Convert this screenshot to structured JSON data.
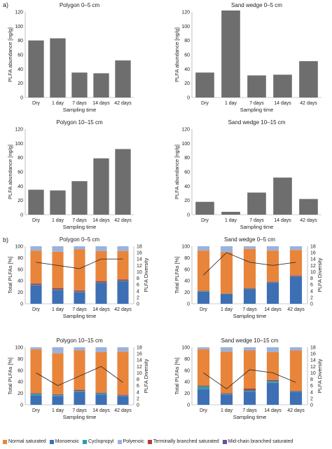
{
  "panel_labels": {
    "a": "a)",
    "b": "b)"
  },
  "categories": [
    "Dry",
    "1 day",
    "7 days",
    "14 days",
    "42 days"
  ],
  "xlabel": "Sampling time",
  "ylabel_a": "PLFA abundance [ng/g]",
  "ylabel_b_left": "Total PLFAs [%]",
  "ylabel_b_right": "PLFA Diversity",
  "colors": {
    "bar_gray": "#6e6e6e",
    "normal_saturated": "#e8853a",
    "monoenoic": "#3d6fb5",
    "cyclopropyl": "#2aa0a8",
    "polyenoic": "#9bb2dd",
    "terminally_branched": "#b33a3a",
    "mid_chain_branched": "#6f4b9a",
    "diversity_line": "#333333"
  },
  "legend": [
    {
      "label": "Normal saturated",
      "color_key": "normal_saturated"
    },
    {
      "label": "Monoenoic",
      "color_key": "monoenoic"
    },
    {
      "label": "Cyclopropyl",
      "color_key": "cyclopropyl"
    },
    {
      "label": "Polyenoic",
      "color_key": "polyenoic"
    },
    {
      "label": "Terminally branched saturated",
      "color_key": "terminally_branched"
    },
    {
      "label": "Mid-chain branched saturated",
      "color_key": "mid_chain_branched"
    }
  ],
  "chart_data": [
    {
      "id": "a1",
      "type": "bar",
      "title": "Polygon 0–5 cm",
      "ylim": [
        0,
        120
      ],
      "yticks": [
        0,
        20,
        40,
        60,
        80,
        100,
        120
      ],
      "values": [
        80,
        83,
        35,
        34,
        52
      ]
    },
    {
      "id": "a2",
      "type": "bar",
      "title": "Sand wedge 0–5 cm",
      "ylim": [
        0,
        120
      ],
      "yticks": [
        0,
        20,
        40,
        60,
        80,
        100,
        120
      ],
      "values": [
        35,
        122,
        31,
        32,
        51
      ]
    },
    {
      "id": "a3",
      "type": "bar",
      "title": "Polygon 10–15 cm",
      "ylim": [
        0,
        120
      ],
      "yticks": [
        0,
        20,
        40,
        60,
        80,
        100,
        120
      ],
      "values": [
        35,
        34,
        47,
        79,
        92
      ]
    },
    {
      "id": "a4",
      "type": "bar",
      "title": "Sand wedge 10–15 cm",
      "ylim": [
        0,
        120
      ],
      "yticks": [
        0,
        20,
        40,
        60,
        80,
        100,
        120
      ],
      "values": [
        18,
        4,
        31,
        52,
        22
      ]
    },
    {
      "id": "b1",
      "type": "stacked_bar_with_line",
      "title": "Polygon 0–5 cm",
      "ylim": [
        0,
        100
      ],
      "yticks": [
        0,
        20,
        40,
        60,
        80,
        100
      ],
      "y2lim": [
        0,
        18
      ],
      "y2ticks": [
        0,
        2,
        4,
        6,
        8,
        10,
        12,
        14,
        16,
        18
      ],
      "series": [
        {
          "key": "monoenoic",
          "values": [
            32,
            24,
            20,
            36,
            39
          ]
        },
        {
          "key": "cyclopropyl",
          "values": [
            1,
            1,
            1,
            1,
            1
          ]
        },
        {
          "key": "terminally_branched",
          "values": [
            2,
            2,
            2,
            2,
            2
          ]
        },
        {
          "key": "mid_chain_branched",
          "values": [
            0.5,
            0.5,
            0.5,
            0.5,
            0.5
          ]
        },
        {
          "key": "normal_saturated",
          "values": [
            57,
            63,
            71,
            52,
            49
          ]
        },
        {
          "key": "polyenoic",
          "values": [
            7.5,
            9.5,
            5.5,
            8.5,
            8.5
          ]
        }
      ],
      "diversity": [
        13,
        12,
        11,
        14,
        14
      ]
    },
    {
      "id": "b2",
      "type": "stacked_bar_with_line",
      "title": "Sand wedge 0–5 cm",
      "ylim": [
        0,
        100
      ],
      "yticks": [
        0,
        20,
        40,
        60,
        80,
        100
      ],
      "y2lim": [
        0,
        18
      ],
      "y2ticks": [
        0,
        2,
        4,
        6,
        8,
        10,
        12,
        14,
        16,
        18
      ],
      "series": [
        {
          "key": "monoenoic",
          "values": [
            21,
            17,
            25,
            36,
            47
          ]
        },
        {
          "key": "cyclopropyl",
          "values": [
            1,
            0.5,
            1,
            1,
            1
          ]
        },
        {
          "key": "terminally_branched",
          "values": [
            0.5,
            0.5,
            1,
            1,
            1
          ]
        },
        {
          "key": "mid_chain_branched",
          "values": [
            0,
            0,
            0.5,
            0.5,
            0.5
          ]
        },
        {
          "key": "normal_saturated",
          "values": [
            70,
            72,
            68,
            54,
            44
          ]
        },
        {
          "key": "polyenoic",
          "values": [
            7.5,
            10,
            4.5,
            7.5,
            6.5
          ]
        }
      ],
      "diversity": [
        9,
        16,
        13,
        12,
        13
      ]
    },
    {
      "id": "b3",
      "type": "stacked_bar_with_line",
      "title": "Polygon 10–15 cm",
      "ylim": [
        0,
        100
      ],
      "yticks": [
        0,
        20,
        40,
        60,
        80,
        100
      ],
      "y2lim": [
        0,
        18
      ],
      "y2ticks": [
        0,
        2,
        4,
        6,
        8,
        10,
        12,
        14,
        16,
        18
      ],
      "series": [
        {
          "key": "monoenoic",
          "values": [
            16,
            15,
            22,
            18,
            15
          ]
        },
        {
          "key": "cyclopropyl",
          "values": [
            3,
            2,
            2,
            2,
            1
          ]
        },
        {
          "key": "terminally_branched",
          "values": [
            1,
            1,
            2,
            1,
            1
          ]
        },
        {
          "key": "mid_chain_branched",
          "values": [
            0.5,
            0.5,
            0.5,
            0.5,
            0.5
          ]
        },
        {
          "key": "normal_saturated",
          "values": [
            76,
            71,
            68,
            70,
            75
          ]
        },
        {
          "key": "polyenoic",
          "values": [
            3.5,
            10.5,
            5.5,
            8.5,
            7.5
          ]
        }
      ],
      "diversity": [
        10,
        6,
        9,
        12,
        7
      ]
    },
    {
      "id": "b4",
      "type": "stacked_bar_with_line",
      "title": "Sand wedge 10–15 cm",
      "ylim": [
        0,
        100
      ],
      "yticks": [
        0,
        20,
        40,
        60,
        80,
        100
      ],
      "y2lim": [
        0,
        18
      ],
      "y2ticks": [
        0,
        2,
        4,
        6,
        8,
        10,
        12,
        14,
        16,
        18
      ],
      "series": [
        {
          "key": "monoenoic",
          "values": [
            27,
            18,
            23,
            38,
            22
          ]
        },
        {
          "key": "cyclopropyl",
          "values": [
            5,
            1,
            2,
            3,
            1
          ]
        },
        {
          "key": "terminally_branched",
          "values": [
            1,
            1,
            3,
            2,
            1
          ]
        },
        {
          "key": "mid_chain_branched",
          "values": [
            0.5,
            0.5,
            0.5,
            0.5,
            0.5
          ]
        },
        {
          "key": "normal_saturated",
          "values": [
            63,
            72,
            66,
            48,
            70
          ]
        },
        {
          "key": "polyenoic",
          "values": [
            3.5,
            7.5,
            5.5,
            8.5,
            5.5
          ]
        }
      ],
      "diversity": [
        10,
        5,
        11,
        10,
        7
      ]
    }
  ]
}
